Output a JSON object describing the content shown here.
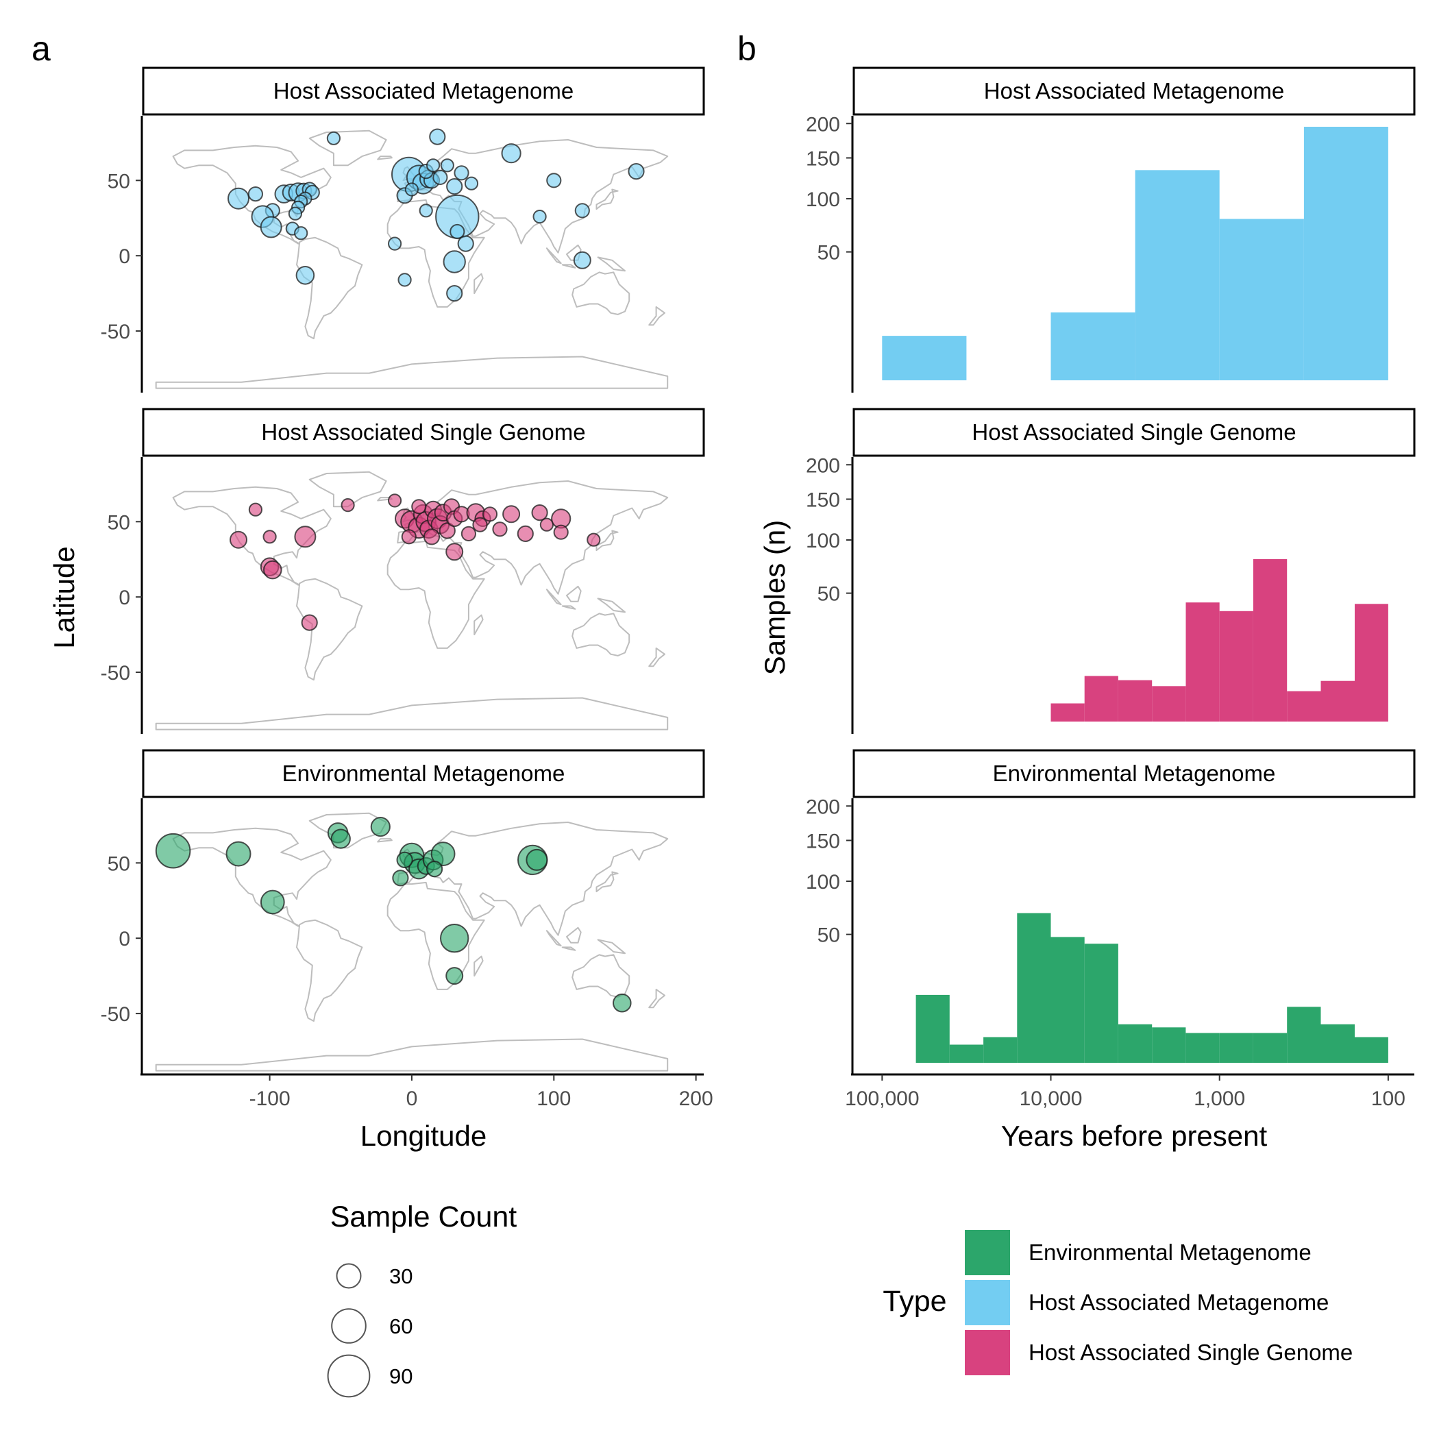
{
  "panel_labels": [
    "a",
    "b"
  ],
  "colors": {
    "Environmental Metagenome": "#2ca66b",
    "Host Associated Metagenome": "#73cdf2",
    "Host Associated Single Genome": "#d8427f",
    "land": "#bdbdbd"
  },
  "chart_data": [
    {
      "type": "scatter",
      "panel": "a",
      "facets": [
        {
          "title": "Host Associated Metagenome",
          "series": "Host Associated Metagenome",
          "points": [
            [
              -55,
              78,
              8
            ],
            [
              18,
              79,
              12
            ],
            [
              70,
              68,
              18
            ],
            [
              158,
              56,
              12
            ],
            [
              -122,
              38,
              22
            ],
            [
              -110,
              41,
              10
            ],
            [
              -90,
              41,
              16
            ],
            [
              -85,
              42,
              14
            ],
            [
              -80,
              42,
              18
            ],
            [
              -76,
              43,
              12
            ],
            [
              -72,
              44,
              10
            ],
            [
              -70,
              42,
              10
            ],
            [
              -75,
              38,
              8
            ],
            [
              -78,
              36,
              8
            ],
            [
              -80,
              32,
              8
            ],
            [
              -82,
              28,
              8
            ],
            [
              -98,
              30,
              10
            ],
            [
              -105,
              26,
              24
            ],
            [
              -99,
              19,
              22
            ],
            [
              -84,
              18,
              8
            ],
            [
              -78,
              15,
              8
            ],
            [
              -75,
              -13,
              16
            ],
            [
              -2,
              54,
              60
            ],
            [
              5,
              52,
              30
            ],
            [
              8,
              48,
              22
            ],
            [
              12,
              51,
              16
            ],
            [
              14,
              50,
              12
            ],
            [
              20,
              52,
              10
            ],
            [
              10,
              56,
              10
            ],
            [
              15,
              60,
              8
            ],
            [
              25,
              60,
              8
            ],
            [
              35,
              55,
              10
            ],
            [
              42,
              48,
              8
            ],
            [
              30,
              46,
              12
            ],
            [
              -5,
              40,
              12
            ],
            [
              0,
              44,
              8
            ],
            [
              32,
              26,
              95
            ],
            [
              10,
              30,
              8
            ],
            [
              32,
              16,
              10
            ],
            [
              38,
              8,
              12
            ],
            [
              30,
              -4,
              24
            ],
            [
              -12,
              8,
              8
            ],
            [
              -5,
              -16,
              8
            ],
            [
              30,
              -25,
              12
            ],
            [
              90,
              26,
              8
            ],
            [
              100,
              50,
              10
            ],
            [
              120,
              30,
              10
            ],
            [
              120,
              -3,
              14
            ]
          ]
        },
        {
          "title": "Host Associated Single Genome",
          "series": "Host Associated Single Genome",
          "points": [
            [
              -110,
              58,
              8
            ],
            [
              -122,
              38,
              14
            ],
            [
              -100,
              40,
              8
            ],
            [
              -75,
              40,
              22
            ],
            [
              -100,
              20,
              16
            ],
            [
              -98,
              18,
              16
            ],
            [
              -72,
              -17,
              12
            ],
            [
              -45,
              61,
              8
            ],
            [
              -5,
              52,
              18
            ],
            [
              0,
              50,
              24
            ],
            [
              5,
              46,
              22
            ],
            [
              8,
              55,
              18
            ],
            [
              10,
              50,
              20
            ],
            [
              12,
              45,
              16
            ],
            [
              15,
              58,
              14
            ],
            [
              18,
              52,
              20
            ],
            [
              20,
              48,
              16
            ],
            [
              22,
              56,
              14
            ],
            [
              25,
              44,
              12
            ],
            [
              28,
              60,
              12
            ],
            [
              30,
              52,
              12
            ],
            [
              35,
              55,
              12
            ],
            [
              30,
              30,
              14
            ],
            [
              45,
              56,
              16
            ],
            [
              50,
              52,
              12
            ],
            [
              40,
              42,
              10
            ],
            [
              48,
              48,
              10
            ],
            [
              55,
              55,
              10
            ],
            [
              62,
              45,
              10
            ],
            [
              70,
              55,
              14
            ],
            [
              80,
              42,
              12
            ],
            [
              90,
              56,
              12
            ],
            [
              95,
              48,
              8
            ],
            [
              105,
              52,
              18
            ],
            [
              105,
              43,
              10
            ],
            [
              128,
              38,
              8
            ],
            [
              -12,
              64,
              8
            ],
            [
              5,
              60,
              10
            ],
            [
              -2,
              40,
              10
            ],
            [
              14,
              40,
              12
            ]
          ]
        },
        {
          "title": "Environmental Metagenome",
          "series": "Environmental Metagenome",
          "points": [
            [
              -168,
              58,
              60
            ],
            [
              -122,
              56,
              30
            ],
            [
              -98,
              24,
              28
            ],
            [
              -52,
              70,
              20
            ],
            [
              -50,
              66,
              18
            ],
            [
              -22,
              74,
              18
            ],
            [
              0,
              55,
              30
            ],
            [
              2,
              50,
              22
            ],
            [
              5,
              46,
              20
            ],
            [
              -5,
              52,
              12
            ],
            [
              -8,
              40,
              12
            ],
            [
              10,
              48,
              14
            ],
            [
              15,
              52,
              20
            ],
            [
              22,
              56,
              28
            ],
            [
              16,
              46,
              12
            ],
            [
              85,
              52,
              44
            ],
            [
              88,
              52,
              22
            ],
            [
              30,
              0,
              40
            ],
            [
              30,
              -25,
              14
            ],
            [
              148,
              -43,
              16
            ]
          ]
        }
      ],
      "xlabel": "Longitude",
      "ylabel": "Latitude",
      "xlim": [
        -190,
        205
      ],
      "ylim": [
        -90,
        92
      ],
      "xticks": [
        -100,
        0,
        100,
        200
      ],
      "yticks": [
        -50,
        0,
        50
      ],
      "legend": {
        "title": "Sample Count",
        "sizes": [
          30,
          60,
          90
        ],
        "placement": "bottom"
      }
    },
    {
      "type": "histogram",
      "panel": "b",
      "x_scale": "log10-reversed",
      "xlabel": "Years before present",
      "ylabel": "Samples (n)",
      "y_scale": "sqrt",
      "xlim": [
        150000,
        70
      ],
      "ylim": [
        0,
        210
      ],
      "xticks": [
        100000,
        10000,
        1000,
        100
      ],
      "xtick_labels": [
        "100,000",
        "10,000",
        "1,000",
        "100"
      ],
      "yticks": [
        50,
        100,
        150,
        200
      ],
      "facets": [
        {
          "title": "Host Associated Metagenome",
          "series": "Host Associated Metagenome",
          "bins": [
            [
              100000,
              31623,
              6
            ],
            [
              10000,
              3162,
              14
            ],
            [
              3162,
              1000,
              134
            ],
            [
              1000,
              316,
              79
            ],
            [
              316,
              100,
              195
            ]
          ]
        },
        {
          "title": "Host Associated Single Genome",
          "series": "Host Associated Single Genome",
          "bins": [
            [
              10000,
              6310,
              1.0
            ],
            [
              6310,
              3981,
              6.3
            ],
            [
              3981,
              2512,
              5.2
            ],
            [
              2512,
              1585,
              3.8
            ],
            [
              1585,
              1000,
              43
            ],
            [
              1000,
              631,
              37
            ],
            [
              631,
              398,
              80
            ],
            [
              398,
              251,
              2.8
            ],
            [
              251,
              158,
              5
            ],
            [
              158,
              100,
              42
            ]
          ]
        },
        {
          "title": "Environmental Metagenome",
          "series": "Environmental Metagenome",
          "bins": [
            [
              63096,
              39811,
              14
            ],
            [
              39811,
              25119,
              1.0
            ],
            [
              25119,
              15849,
              2.0
            ],
            [
              15849,
              10000,
              68
            ],
            [
              10000,
              6310,
              48
            ],
            [
              6310,
              3981,
              43
            ],
            [
              3981,
              2512,
              4.5
            ],
            [
              2512,
              1585,
              3.8
            ],
            [
              1585,
              1000,
              2.7
            ],
            [
              1000,
              631,
              2.7
            ],
            [
              631,
              398,
              2.7
            ],
            [
              398,
              251,
              9.5
            ],
            [
              251,
              158,
              4.5
            ],
            [
              158,
              100,
              2.0
            ],
            [
              100,
              100,
              0
            ]
          ]
        }
      ],
      "legend": {
        "title": "Type",
        "entries": [
          "Environmental Metagenome",
          "Host Associated Metagenome",
          "Host Associated Single Genome"
        ],
        "placement": "bottom-right"
      }
    }
  ]
}
